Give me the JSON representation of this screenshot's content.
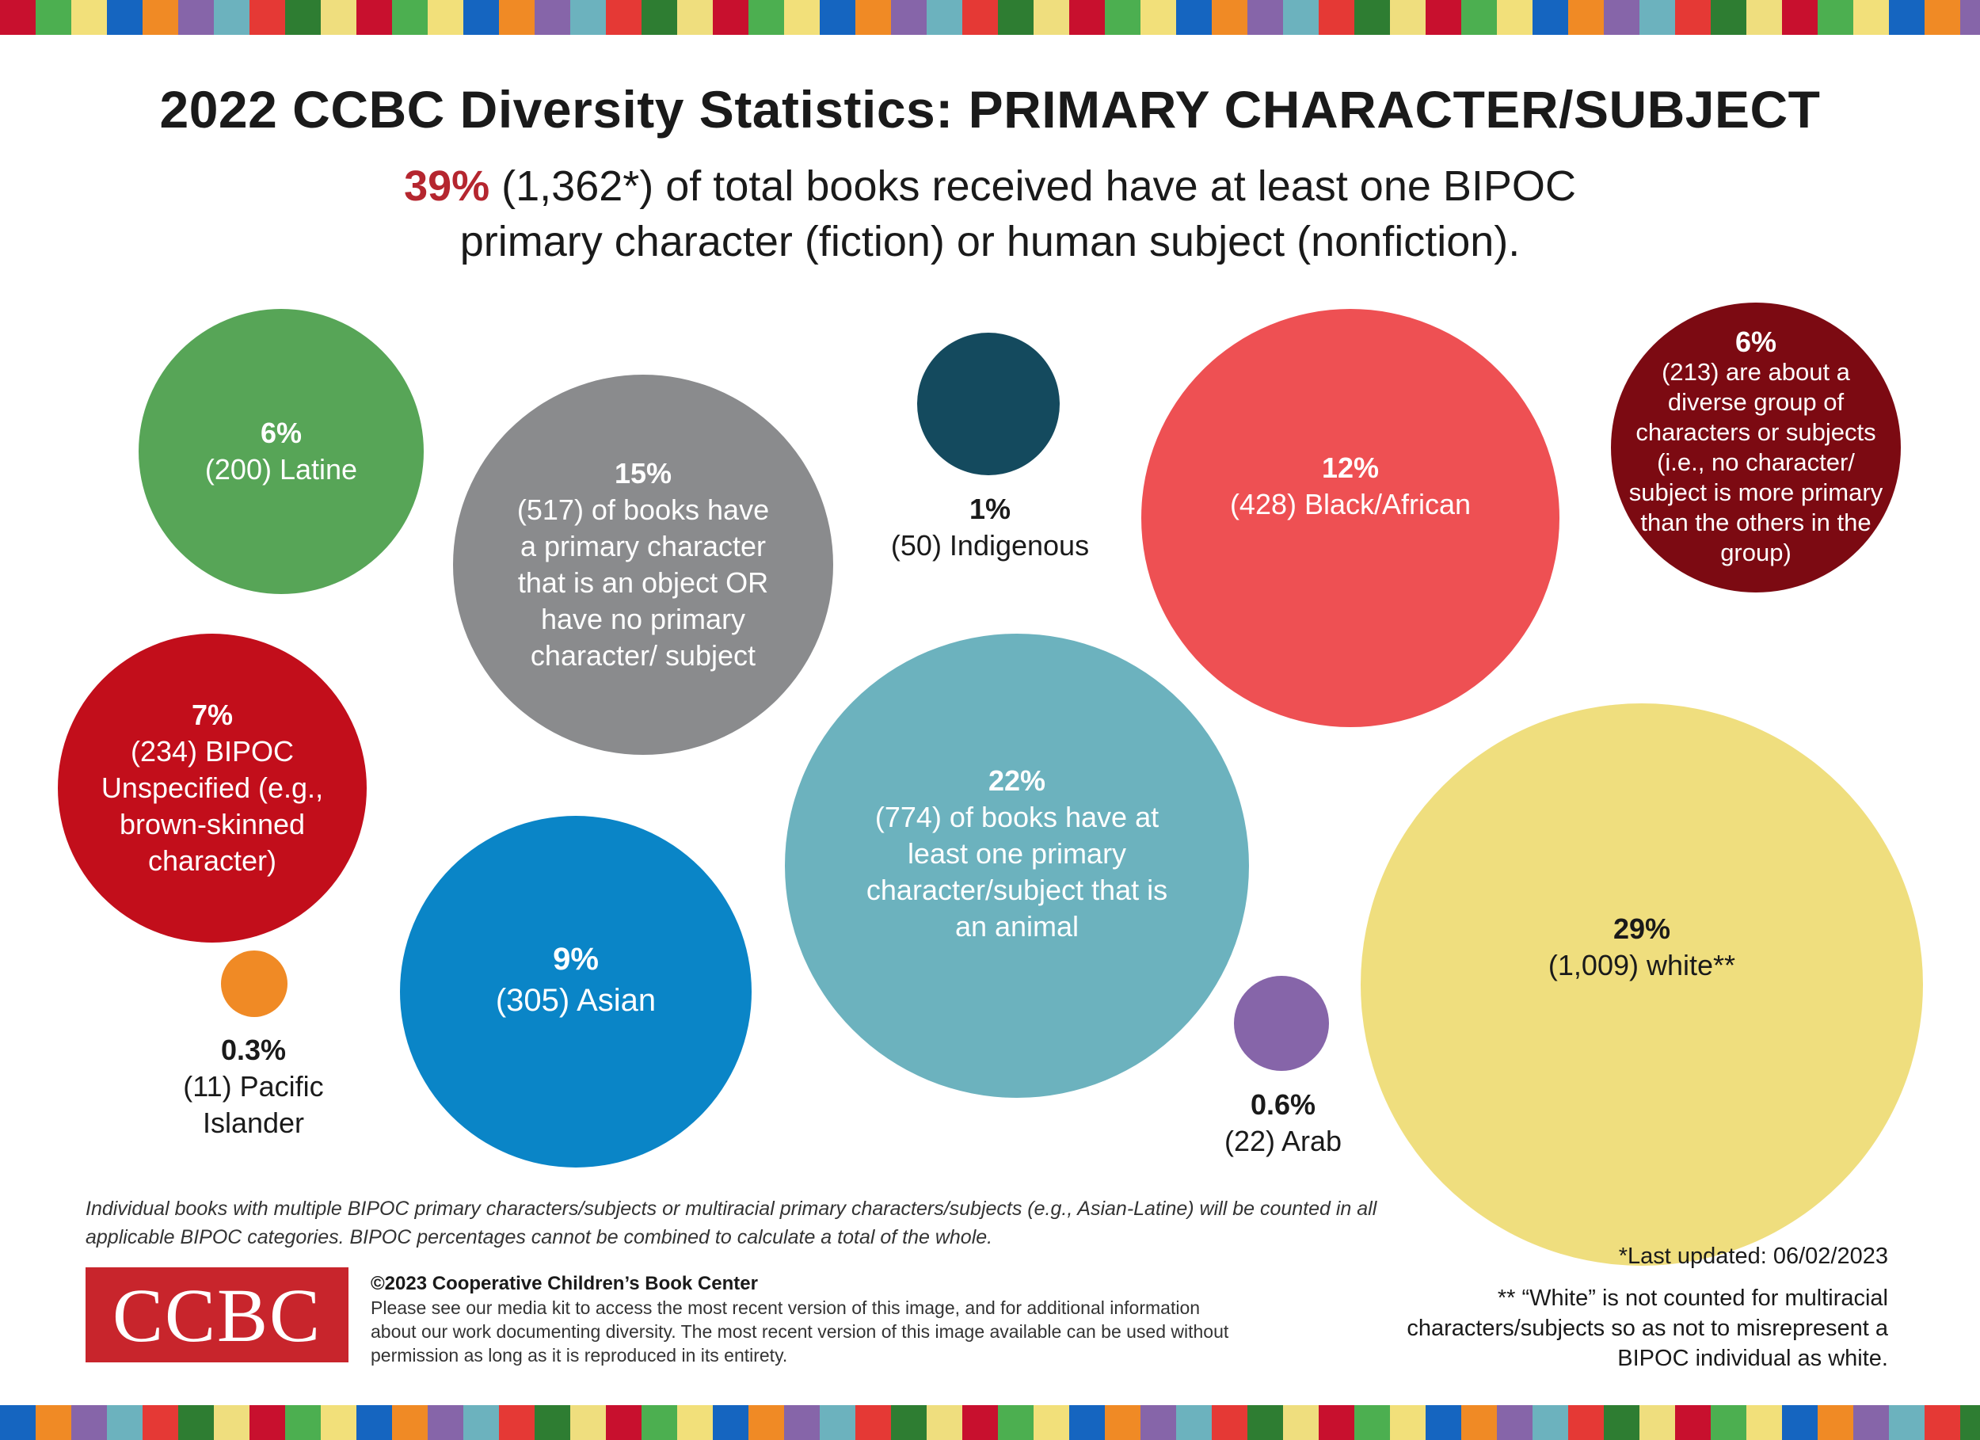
{
  "header": {
    "title": "2022 CCBC Diversity Statistics: PRIMARY CHARACTER/SUBJECT",
    "subtitle_highlight": "39%",
    "subtitle_line1": " (1,362*) of total books received have at least one BIPOC",
    "subtitle_line2": "primary character (fiction) or human subject (nonfiction)."
  },
  "chart_data": {
    "type": "bubble",
    "title": "2022 CCBC Diversity Statistics: PRIMARY CHARACTER/SUBJECT",
    "series": [
      {
        "name": "Latine",
        "percent": "6%",
        "count": 200,
        "label": "(200) Latine",
        "color": "#57a557"
      },
      {
        "name": "Object or no primary character",
        "percent": "15%",
        "count": 517,
        "label": "(517) of books have a primary character that is an object OR have no primary character/ subject",
        "color": "#8a8b8d"
      },
      {
        "name": "Indigenous",
        "percent": "1%",
        "count": 50,
        "label": "(50) Indigenous",
        "color": "#144a5e"
      },
      {
        "name": "Black/African",
        "percent": "12%",
        "count": 428,
        "label": "(428) Black/African",
        "color": "#ee5053"
      },
      {
        "name": "Diverse group",
        "percent": "6%",
        "count": 213,
        "label": "(213) are about a diverse group of characters or subjects (i.e., no character/ subject is more primary than the others in the group)",
        "color": "#7c0a12"
      },
      {
        "name": "BIPOC Unspecified",
        "percent": "7%",
        "count": 234,
        "label": "(234) BIPOC Unspecified (e.g., brown-skinned character)",
        "color": "#c20e1b"
      },
      {
        "name": "Animal",
        "percent": "22%",
        "count": 774,
        "label": "(774) of books have at least one primary character/subject that is an animal",
        "color": "#6cb2be"
      },
      {
        "name": "Asian",
        "percent": "9%",
        "count": 305,
        "label": "(305) Asian",
        "color": "#0a85c7"
      },
      {
        "name": "Pacific Islander",
        "percent": "0.3%",
        "count": 11,
        "label": "(11) Pacific Islander",
        "color": "#f08a25"
      },
      {
        "name": "Arab",
        "percent": "0.6%",
        "count": 22,
        "label": "(22) Arab",
        "color": "#8665a9"
      },
      {
        "name": "white",
        "percent": "29%",
        "count": 1009,
        "label": "(1,009) white**",
        "color": "#efde7e"
      }
    ]
  },
  "footer": {
    "footnote": "Individual books with multiple BIPOC primary characters/subjects or multiracial primary characters/subjects (e.g., Asian-Latine) will be counted in all applicable BIPOC categories. BIPOC percentages cannot be combined to calculate a total of the whole.",
    "logo_text": "CCBC",
    "copyright_title": "©2023 Cooperative Children’s Book Center",
    "copyright_body": "Please see our media kit to access the most recent version of this image, and for additional information about our work documenting diversity. The most recent version of this image available can be used without permission as long as it is reproduced in its entirety.",
    "last_updated": "*Last updated:  06/02/2023",
    "white_note": "** “White” is not counted for multiracial characters/subjects so as not to misrepresent a BIPOC individual as white."
  },
  "stripe_colors": [
    "#c8102e",
    "#4caf50",
    "#f2e07a",
    "#1565c0",
    "#f08a25",
    "#8665a9",
    "#6cb2be",
    "#e53935",
    "#2e7d32",
    "#efde7e"
  ]
}
